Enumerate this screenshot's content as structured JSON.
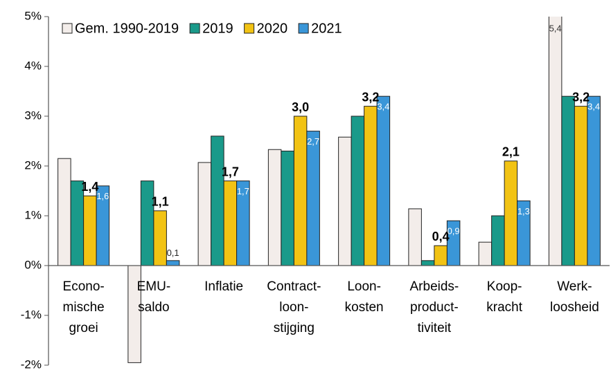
{
  "chart_data": {
    "type": "bar",
    "categories": [
      [
        "Econo-",
        "mische",
        "groei"
      ],
      [
        "EMU-",
        "saldo"
      ],
      [
        "Inflatie"
      ],
      [
        "Contract-",
        "loon-",
        "stijging"
      ],
      [
        "Loon-",
        "kosten"
      ],
      [
        "Arbeids-",
        "product-",
        "tiviteit"
      ],
      [
        "Koop-",
        "kracht"
      ],
      [
        "Werk-",
        "loosheid"
      ]
    ],
    "series": [
      {
        "name": "Gem. 1990-2019",
        "color": "#f3edea",
        "values": [
          2.15,
          -1.95,
          2.07,
          2.33,
          2.58,
          1.14,
          0.47,
          5.4
        ],
        "value_labels": [
          null,
          null,
          null,
          null,
          null,
          null,
          null,
          "5,4"
        ]
      },
      {
        "name": "2019",
        "color": "#1a9a8a",
        "values": [
          1.7,
          1.7,
          2.6,
          2.3,
          3.0,
          0.1,
          1.0,
          3.4
        ]
      },
      {
        "name": "2020",
        "color": "#f2c314",
        "values": [
          1.4,
          1.1,
          1.7,
          3.0,
          3.2,
          0.4,
          2.1,
          3.2
        ],
        "value_labels": [
          "1,4",
          "1,1",
          "1,7",
          "3,0",
          "3,2",
          "0,4",
          "2,1",
          "3,2"
        ]
      },
      {
        "name": "2021",
        "color": "#3a96d8",
        "values": [
          1.6,
          0.1,
          1.7,
          2.7,
          3.4,
          0.9,
          1.3,
          3.4
        ],
        "value_labels": [
          "1,6",
          "0,1",
          "1,7",
          "2,7",
          "3,4",
          "0,9",
          "1,3",
          "3,4"
        ]
      }
    ],
    "ylim": [
      -2,
      5
    ],
    "yticks": [
      {
        "value": -2,
        "label": "-2%"
      },
      {
        "value": -1,
        "label": "-1%"
      },
      {
        "value": 0,
        "label": "0%"
      },
      {
        "value": 1,
        "label": "1%"
      },
      {
        "value": 2,
        "label": "2%"
      },
      {
        "value": 3,
        "label": "3%"
      },
      {
        "value": 4,
        "label": "4%"
      },
      {
        "value": 5,
        "label": "5%"
      }
    ],
    "legend": "top-left"
  }
}
